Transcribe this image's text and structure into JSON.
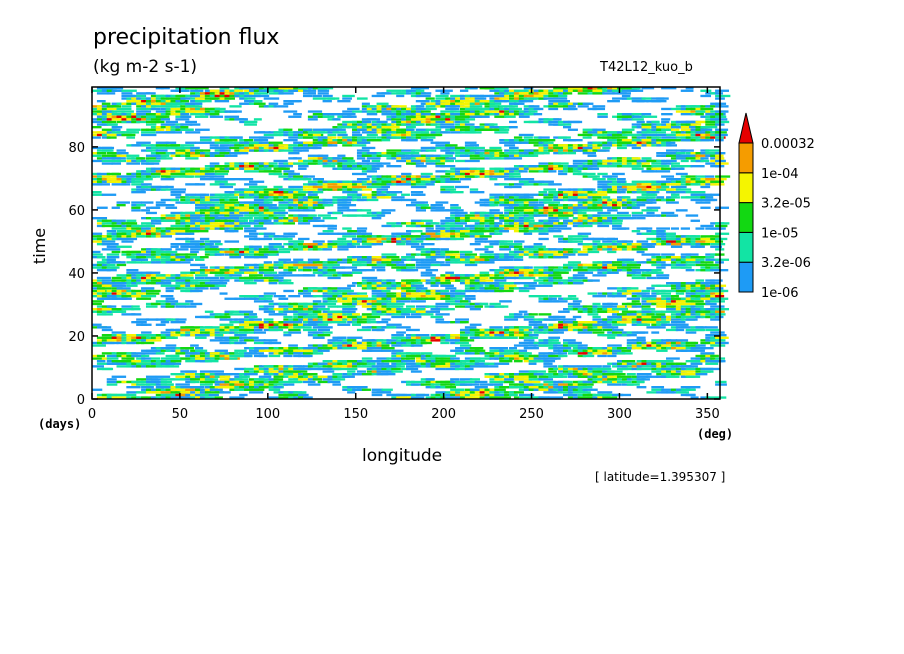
{
  "chart_data": {
    "type": "heatmap",
    "title": "precipitation flux",
    "units": "(kg m-2 s-1)",
    "run_id": "T42L12_kuo_b",
    "xlabel": "longitude",
    "ylabel": "time",
    "x_unit": "(deg)",
    "y_unit": "(days)",
    "annotation": "[ latitude=1.395307 ]",
    "xlim": [
      0,
      357.1875
    ],
    "ylim": [
      0,
      99
    ],
    "x_ticks": [
      0,
      50,
      100,
      150,
      200,
      250,
      300,
      350
    ],
    "y_ticks": [
      0,
      20,
      40,
      60,
      80
    ],
    "grid": false,
    "legend_position": "right",
    "colorbar": {
      "levels": [
        "1e-06",
        "3.2e-06",
        "1e-05",
        "3.2e-05",
        "1e-04",
        "0.00032"
      ],
      "colors": [
        "#1e9bf5",
        "#12e4a4",
        "#12d812",
        "#f5f500",
        "#f59c00",
        "#e60000"
      ]
    }
  }
}
